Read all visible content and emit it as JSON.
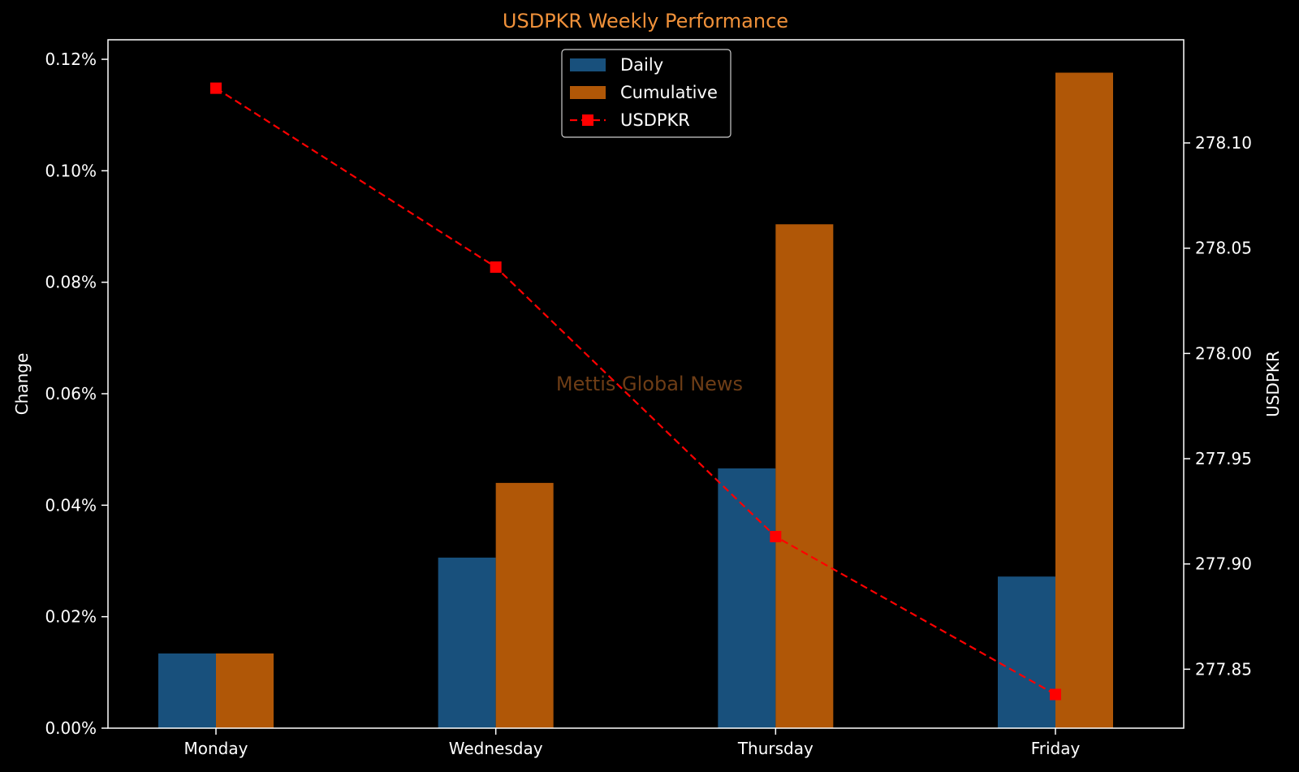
{
  "chart_data": {
    "type": "bar",
    "title": "USDPKR Weekly Performance",
    "categories": [
      "Monday",
      "Wednesday",
      "Thursday",
      "Friday"
    ],
    "series": [
      {
        "name": "Daily",
        "type": "bar",
        "axis": "left",
        "values": [
          0.0134,
          0.0306,
          0.0466,
          0.0272
        ]
      },
      {
        "name": "Cumulative",
        "type": "bar",
        "axis": "left",
        "values": [
          0.0134,
          0.044,
          0.0904,
          0.1176
        ]
      },
      {
        "name": "USDPKR",
        "type": "line",
        "axis": "right",
        "style": "dashed-square-markers",
        "values": [
          278.126,
          278.041,
          277.913,
          277.838
        ]
      }
    ],
    "ylabel": "Change",
    "ylabel_right": "USDPKR",
    "ylim": [
      0,
      0.1235
    ],
    "ylim_right": [
      277.822,
      278.149
    ],
    "y_ticks": [
      "0.00%",
      "0.02%",
      "0.04%",
      "0.06%",
      "0.08%",
      "0.10%",
      "0.12%"
    ],
    "y_ticks_right": [
      "277.85",
      "277.90",
      "277.95",
      "278.00",
      "278.05",
      "278.10"
    ],
    "legend_position": "top-center",
    "grid": false,
    "watermark": "Mettis Global News",
    "colors": {
      "background": "#000000",
      "daily": "#18507c",
      "cumulative": "#b05707",
      "line": "#ff0000",
      "title": "#f0913a",
      "watermark": "#6e3d16",
      "axes": "#ffffff"
    }
  }
}
